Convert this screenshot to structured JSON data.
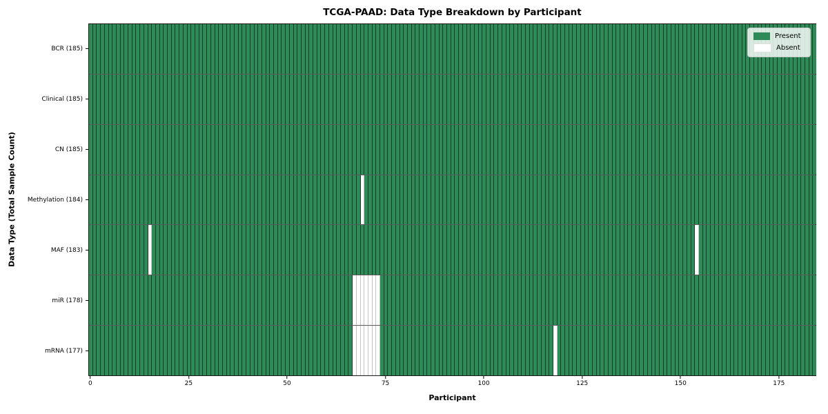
{
  "chart_data": {
    "type": "heatmap",
    "title": "TCGA-PAAD: Data Type Breakdown by Participant",
    "xlabel": "Participant",
    "ylabel": "Data Type (Total Sample Count)",
    "n_participants": 185,
    "x_ticks": [
      0,
      25,
      50,
      75,
      100,
      125,
      150,
      175
    ],
    "xlim": [
      -0.5,
      184.5
    ],
    "grid": false,
    "legend_position": "upper right",
    "legend": [
      {
        "label": "Present",
        "color": "#2e8b57"
      },
      {
        "label": "Absent",
        "color": "#ffffff"
      }
    ],
    "rows": [
      {
        "label": "BCR (185)",
        "data_type": "BCR",
        "total": 185,
        "absent_participants": []
      },
      {
        "label": "Clinical (185)",
        "data_type": "Clinical",
        "total": 185,
        "absent_participants": []
      },
      {
        "label": "CN (185)",
        "data_type": "CN",
        "total": 185,
        "absent_participants": []
      },
      {
        "label": "Methylation (184)",
        "data_type": "Methylation",
        "total": 184,
        "absent_participants": [
          69
        ]
      },
      {
        "label": "MAF (183)",
        "data_type": "MAF",
        "total": 183,
        "absent_participants": [
          15,
          154
        ]
      },
      {
        "label": "miR (178)",
        "data_type": "miR",
        "total": 178,
        "absent_participants": [
          67,
          68,
          69,
          70,
          71,
          72,
          73
        ]
      },
      {
        "label": "mRNA (177)",
        "data_type": "mRNA",
        "total": 177,
        "absent_participants": [
          67,
          68,
          69,
          70,
          71,
          72,
          73,
          118
        ]
      }
    ],
    "colors": {
      "present": "#2e8b57",
      "absent": "#ffffff",
      "cell_edge": "rgba(0,0,0,0.55)",
      "absent_edge": "#c4c4c4"
    }
  }
}
